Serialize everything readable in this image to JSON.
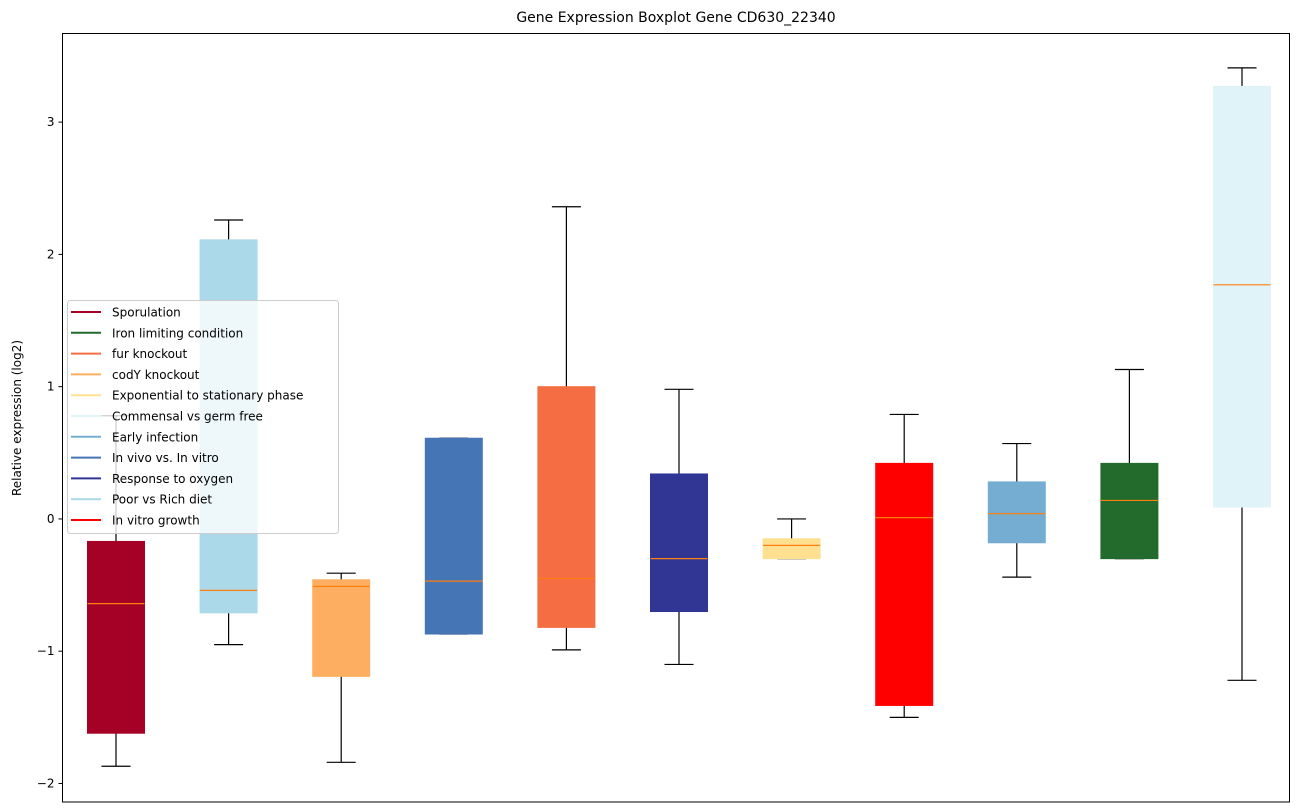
{
  "chart_data": {
    "type": "boxplot",
    "title": "Gene Expression Boxplot Gene CD630_22340",
    "xlabel": "",
    "ylabel": "Relative expression (log2)",
    "ylim": [
      -2.14,
      3.67
    ],
    "yticks": [
      -2,
      -1,
      0,
      1,
      2,
      3
    ],
    "ytick_labels": [
      "−2",
      "−1",
      "0",
      "1",
      "2",
      "3"
    ],
    "grid": false,
    "legend_position": "center-left",
    "median_color": "#ff7f0e",
    "boxes": [
      {
        "name": "Sporulation",
        "color": "#a50026",
        "whisker_low": -1.87,
        "q1": -1.62,
        "median": -0.64,
        "q3": -0.17,
        "whisker_high": 0.78
      },
      {
        "name": "Poor vs Rich diet",
        "color": "#abd9e9",
        "whisker_low": -0.95,
        "q1": -0.71,
        "median": -0.54,
        "q3": 2.11,
        "whisker_high": 2.26
      },
      {
        "name": "codY knockout",
        "color": "#fdae61",
        "whisker_low": -1.84,
        "q1": -1.19,
        "median": -0.51,
        "q3": -0.46,
        "whisker_high": -0.41
      },
      {
        "name": "In vivo vs. In vitro",
        "color": "#4575b4",
        "whisker_low": -0.87,
        "q1": -0.87,
        "median": -0.47,
        "q3": 0.61,
        "whisker_high": 0.61
      },
      {
        "name": "fur knockout",
        "color": "#f46d43",
        "whisker_low": -0.99,
        "q1": -0.82,
        "median": -0.45,
        "q3": 1.0,
        "whisker_high": 2.36
      },
      {
        "name": "Response to oxygen",
        "color": "#313695",
        "whisker_low": -1.1,
        "q1": -0.7,
        "median": -0.3,
        "q3": 0.34,
        "whisker_high": 0.98
      },
      {
        "name": "Exponential to stationary phase",
        "color": "#fee090",
        "whisker_low": -0.3,
        "q1": -0.3,
        "median": -0.2,
        "q3": -0.15,
        "whisker_high": 0.0
      },
      {
        "name": "In vitro growth",
        "color": "#ff0000",
        "whisker_low": -1.5,
        "q1": -1.41,
        "median": 0.01,
        "q3": 0.42,
        "whisker_high": 0.79
      },
      {
        "name": "Early infection",
        "color": "#74add1",
        "whisker_low": -0.44,
        "q1": -0.18,
        "median": 0.04,
        "q3": 0.28,
        "whisker_high": 0.57
      },
      {
        "name": "Iron limiting condition",
        "color": "#226b2d",
        "whisker_low": -0.3,
        "q1": -0.3,
        "median": 0.14,
        "q3": 0.42,
        "whisker_high": 1.13
      },
      {
        "name": "Commensal vs germ free",
        "color": "#e0f3f8",
        "whisker_low": -1.22,
        "q1": 0.09,
        "median": 1.77,
        "q3": 3.27,
        "whisker_high": 3.41
      }
    ],
    "legend": [
      {
        "label": "Sporulation",
        "color": "#a50026"
      },
      {
        "label": "Iron limiting condition",
        "color": "#226b2d"
      },
      {
        "label": "fur knockout",
        "color": "#f46d43"
      },
      {
        "label": "codY knockout",
        "color": "#fdae61"
      },
      {
        "label": "Exponential to stationary phase",
        "color": "#fee090"
      },
      {
        "label": "Commensal vs germ free",
        "color": "#e0f3f8"
      },
      {
        "label": "Early infection",
        "color": "#74add1"
      },
      {
        "label": "In vivo vs. In vitro",
        "color": "#4575b4"
      },
      {
        "label": "Response to oxygen",
        "color": "#313695"
      },
      {
        "label": "Poor vs Rich diet",
        "color": "#abd9e9"
      },
      {
        "label": "In vitro growth",
        "color": "#ff0000"
      }
    ]
  }
}
